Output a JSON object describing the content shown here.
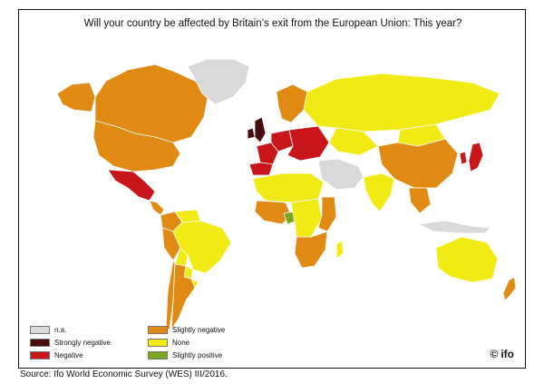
{
  "title": "Will your country be affected by Britain’s exit from the European Union: This year?",
  "legend": [
    {
      "label": "n.a.",
      "color": "#d9d9db"
    },
    {
      "label": "Strongly negative",
      "color": "#4a0e0e"
    },
    {
      "label": "Negative",
      "color": "#c8161a"
    },
    {
      "label": "Slightly negative",
      "color": "#e08a14"
    },
    {
      "label": "None",
      "color": "#f2ea14"
    },
    {
      "label": "Slightly positive",
      "color": "#7aa61e"
    }
  ],
  "logo": {
    "symbol": "©",
    "text": "ifo"
  },
  "source": "Source: Ifo World Economic Survey (WES) III/2016.",
  "map_categories": {
    "greenland": "n.a.",
    "canada": "Slightly negative",
    "usa": "Slightly negative",
    "alaska": "Slightly negative",
    "mexico": "Negative",
    "central-america": "Slightly negative",
    "colombia": "Slightly negative",
    "venezuela": "None",
    "brazil": "None",
    "peru": "Slightly negative",
    "bolivia": "None",
    "paraguay": "None",
    "argentina": "Slightly negative",
    "chile": "Slightly negative",
    "uruguay": "None",
    "uk": "Strongly negative",
    "ireland": "Strongly negative",
    "spain": "Negative",
    "france": "Negative",
    "germany": "Negative",
    "scandinavia": "Slightly negative",
    "eastern-europe": "Negative",
    "russia": "None",
    "kazakhstan": "None",
    "mongolia": "None",
    "china": "Slightly negative",
    "india": "None",
    "japan": "Negative",
    "south-korea": "Negative",
    "southeast-asia": "Slightly negative",
    "indonesia": "n.a.",
    "australia": "None",
    "new-zealand": "Slightly negative",
    "middle-east": "n.a.",
    "north-africa": "None",
    "west-africa": "Slightly negative",
    "central-africa": "None",
    "east-africa": "Slightly negative",
    "southern-africa": "Slightly negative",
    "madagascar": "None",
    "nigeria": "Slightly positive"
  }
}
